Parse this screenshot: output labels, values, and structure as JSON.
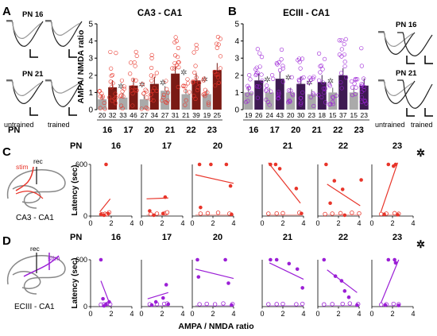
{
  "panel_letters": {
    "a": "A",
    "b": "B",
    "c": "C",
    "d": "D"
  },
  "colors": {
    "ca3": "#e8352a",
    "ec": "#9b1fd6",
    "untrained": "#aaaaaa",
    "trained_dark": "#1a1a1a",
    "gray_line": "#888888",
    "ca3_bar": "#7a1a14",
    "ec_bar": "#3e1a52"
  },
  "trace_labels": {
    "pn16": "PN 16",
    "pn21": "PN 21",
    "untrained": "untrained",
    "trained": "trained"
  },
  "chart_data": [
    {
      "type": "bar",
      "panel": "A",
      "title": "CA3 - CA1",
      "ylabel": "AMPA/ NMDA ratio",
      "xlabel": "PN",
      "ylim": [
        0,
        5
      ],
      "yticks": [
        "0",
        "1",
        "2",
        "3",
        "4",
        "5"
      ],
      "categories": [
        "16",
        "17",
        "20",
        "21",
        "22",
        "23"
      ],
      "series": [
        {
          "name": "untrained",
          "values": [
            0.6,
            0.7,
            0.6,
            1.1,
            0.9,
            0.9
          ]
        },
        {
          "name": "trained",
          "values": [
            1.3,
            1.4,
            1.5,
            2.1,
            1.7,
            2.3
          ]
        }
      ],
      "n_labels": [
        [
          "20",
          "32"
        ],
        [
          "33",
          "46"
        ],
        [
          "27",
          "34"
        ],
        [
          "27",
          "31"
        ],
        [
          "21",
          "39"
        ],
        [
          "19",
          "25"
        ]
      ],
      "significance": [
        true,
        true,
        true,
        true,
        true,
        false
      ],
      "sig_mark": "✲"
    },
    {
      "type": "bar",
      "panel": "B",
      "title": "ECIII - CA1",
      "ylabel": "",
      "xlabel": "",
      "ylim": [
        0,
        5
      ],
      "yticks": [
        "0",
        "1",
        "2",
        "3",
        "4",
        "5"
      ],
      "categories": [
        "16",
        "17",
        "20",
        "21",
        "22",
        "23"
      ],
      "series": [
        {
          "name": "untrained",
          "values": [
            1.0,
            1.0,
            1.0,
            0.9,
            1.0,
            1.0
          ]
        },
        {
          "name": "trained",
          "values": [
            1.7,
            1.8,
            1.5,
            1.6,
            2.0,
            1.4
          ]
        }
      ],
      "n_labels": [
        [
          "19",
          "26"
        ],
        [
          "24",
          "43"
        ],
        [
          "20",
          "30"
        ],
        [
          "23",
          "18"
        ],
        [
          "15",
          "37"
        ],
        [
          "15",
          "23"
        ]
      ],
      "significance": [
        true,
        true,
        true,
        true,
        false,
        false
      ],
      "sig_mark": "✲"
    },
    {
      "type": "scatter",
      "panel": "C",
      "region_label": "CA3 - CA1",
      "diagram_labels": {
        "stim": "stim",
        "rec": "rec"
      },
      "row_label": "PN",
      "ylabel": "Latency (sec)",
      "xlim": [
        0,
        4
      ],
      "ylim": [
        0,
        600
      ],
      "xticks": [
        "0",
        "2",
        "4"
      ],
      "yticks": [
        "0",
        "600"
      ],
      "asterisk": "✲",
      "subplots": [
        {
          "pn": "16",
          "filled": [
            [
              1.5,
              600
            ],
            [
              1.0,
              20
            ],
            [
              1.3,
              10
            ],
            [
              1.7,
              30
            ]
          ],
          "open": [
            [
              1.1,
              5
            ],
            [
              1.4,
              8
            ],
            [
              1.8,
              25
            ],
            [
              1.6,
              3
            ]
          ],
          "fit_filled": [
            [
              0.9,
              50
            ],
            [
              1.9,
              200
            ]
          ],
          "fit_open": [
            [
              0.9,
              12
            ],
            [
              1.9,
              12
            ]
          ]
        },
        {
          "pn": "17",
          "filled": [
            [
              0.8,
              60
            ],
            [
              2.3,
              220
            ],
            [
              2.1,
              30
            ],
            [
              1.2,
              10
            ]
          ],
          "open": [
            [
              0.9,
              5
            ],
            [
              1.5,
              10
            ],
            [
              2.3,
              15
            ],
            [
              2.5,
              25
            ]
          ],
          "fit_filled": [
            [
              0.5,
              200
            ],
            [
              2.6,
              210
            ]
          ],
          "fit_open": [
            [
              0.5,
              12
            ],
            [
              2.6,
              12
            ]
          ]
        },
        {
          "pn": "20",
          "filled": [
            [
              0.7,
              600
            ],
            [
              1.8,
              600
            ],
            [
              3.3,
              600
            ],
            [
              0.8,
              100
            ],
            [
              3.7,
              350
            ],
            [
              3.8,
              20
            ]
          ],
          "open": [
            [
              0.8,
              10
            ],
            [
              1.5,
              15
            ],
            [
              2.5,
              20
            ],
            [
              3.6,
              10
            ]
          ],
          "fit_filled": [
            [
              0.3,
              480
            ],
            [
              4.0,
              380
            ]
          ],
          "fit_open": [
            [
              0.3,
              12
            ],
            [
              4.0,
              12
            ]
          ]
        },
        {
          "pn": "21",
          "filled": [
            [
              0.8,
              600
            ],
            [
              1.3,
              600
            ],
            [
              3.3,
              320
            ],
            [
              3.8,
              30
            ],
            [
              1.7,
              550
            ]
          ],
          "open": [
            [
              0.6,
              10
            ],
            [
              1.4,
              12
            ],
            [
              2.0,
              15
            ],
            [
              3.6,
              20
            ]
          ],
          "fit_filled": [
            [
              0.6,
              620
            ],
            [
              3.7,
              150
            ]
          ],
          "fit_open": [
            [
              0.6,
              12
            ],
            [
              3.7,
              12
            ]
          ]
        },
        {
          "pn": "22",
          "filled": [
            [
              0.8,
              600
            ],
            [
              1.6,
              410
            ],
            [
              4.2,
              420
            ],
            [
              2.4,
              310
            ],
            [
              1.2,
              150
            ],
            [
              2.6,
              10
            ]
          ],
          "open": [
            [
              0.7,
              5
            ],
            [
              1.4,
              10
            ],
            [
              2.2,
              15
            ],
            [
              3.3,
              20
            ],
            [
              4.0,
              12
            ]
          ],
          "fit_filled": [
            [
              0.9,
              370
            ],
            [
              4.1,
              120
            ]
          ],
          "fit_open": [
            [
              0.7,
              14
            ],
            [
              4.1,
              14
            ]
          ]
        },
        {
          "pn": "23",
          "filled": [
            [
              1.6,
              600
            ],
            [
              2.3,
              600
            ],
            [
              2.1,
              580
            ],
            [
              1.2,
              20
            ],
            [
              2.5,
              15
            ]
          ],
          "open": [
            [
              0.9,
              5
            ],
            [
              1.4,
              10
            ],
            [
              2.2,
              15
            ],
            [
              2.6,
              8
            ]
          ],
          "fit_filled": [
            [
              0.8,
              20
            ],
            [
              2.5,
              620
            ]
          ],
          "fit_open": [
            [
              0.8,
              12
            ],
            [
              2.6,
              12
            ]
          ],
          "significant": true
        }
      ]
    },
    {
      "type": "scatter",
      "panel": "D",
      "region_label": "ECIII - CA1",
      "diagram_labels": {
        "stim": "stim",
        "rec": "rec"
      },
      "row_label": "PN",
      "ylabel": "Latency (sec)",
      "xlabel": "AMPA / NMDA ratio",
      "xlim": [
        0,
        4
      ],
      "ylim": [
        0,
        600
      ],
      "xticks": [
        "0",
        "2",
        "4"
      ],
      "yticks": [
        "0",
        "600"
      ],
      "asterisk": "✲",
      "subplots": [
        {
          "pn": "16",
          "filled": [
            [
              1.0,
              600
            ],
            [
              1.2,
              100
            ],
            [
              1.5,
              30
            ],
            [
              1.8,
              60
            ],
            [
              1.3,
              10
            ]
          ],
          "open": [
            [
              1.0,
              5
            ],
            [
              1.3,
              8
            ],
            [
              1.6,
              15
            ],
            [
              1.9,
              10
            ]
          ],
          "fit_filled": [
            [
              1.0,
              330
            ],
            [
              1.9,
              20
            ]
          ],
          "fit_open": [
            [
              1.0,
              12
            ],
            [
              1.9,
              12
            ]
          ]
        },
        {
          "pn": "17",
          "filled": [
            [
              2.4,
              280
            ],
            [
              2.1,
              110
            ],
            [
              1.4,
              60
            ],
            [
              1.0,
              20
            ],
            [
              2.6,
              30
            ]
          ],
          "open": [
            [
              0.8,
              10
            ],
            [
              1.5,
              12
            ],
            [
              2.2,
              15
            ],
            [
              2.5,
              20
            ]
          ],
          "fit_filled": [
            [
              0.6,
              100
            ],
            [
              2.6,
              180
            ]
          ],
          "fit_open": [
            [
              0.6,
              12
            ],
            [
              2.6,
              12
            ]
          ]
        },
        {
          "pn": "20",
          "filled": [
            [
              0.5,
              600
            ],
            [
              0.6,
              380
            ],
            [
              3.2,
              600
            ],
            [
              3.5,
              300
            ],
            [
              3.8,
              20
            ]
          ],
          "open": [
            [
              0.7,
              10
            ],
            [
              1.4,
              15
            ],
            [
              2.2,
              10
            ],
            [
              3.0,
              20
            ],
            [
              3.9,
              12
            ]
          ],
          "fit_filled": [
            [
              0.3,
              480
            ],
            [
              4.0,
              360
            ]
          ],
          "fit_open": [
            [
              0.3,
              12
            ],
            [
              4.0,
              12
            ]
          ]
        },
        {
          "pn": "21",
          "filled": [
            [
              0.8,
              600
            ],
            [
              1.4,
              600
            ],
            [
              2.6,
              550
            ],
            [
              3.4,
              480
            ],
            [
              3.9,
              240
            ]
          ],
          "open": [
            [
              0.6,
              10
            ],
            [
              1.4,
              12
            ],
            [
              2.0,
              15
            ],
            [
              3.3,
              10
            ],
            [
              3.9,
              15
            ]
          ],
          "fit_filled": [
            [
              0.7,
              560
            ],
            [
              4.0,
              350
            ]
          ],
          "fit_open": [
            [
              0.7,
              12
            ],
            [
              4.0,
              12
            ]
          ]
        },
        {
          "pn": "22",
          "filled": [
            [
              0.6,
              600
            ],
            [
              1.7,
              390
            ],
            [
              2.3,
              330
            ],
            [
              2.6,
              200
            ],
            [
              3.0,
              120
            ],
            [
              3.8,
              20
            ]
          ],
          "open": [
            [
              0.6,
              8
            ],
            [
              1.4,
              12
            ],
            [
              2.4,
              15
            ],
            [
              3.1,
              20
            ],
            [
              3.9,
              12
            ]
          ],
          "fit_filled": [
            [
              0.9,
              470
            ],
            [
              3.8,
              180
            ]
          ],
          "fit_open": [
            [
              0.6,
              14
            ],
            [
              3.9,
              14
            ]
          ]
        },
        {
          "pn": "23",
          "filled": [
            [
              1.6,
              600
            ],
            [
              2.2,
              600
            ],
            [
              2.3,
              560
            ],
            [
              1.3,
              20
            ],
            [
              2.6,
              15
            ]
          ],
          "open": [
            [
              0.9,
              5
            ],
            [
              1.4,
              10
            ],
            [
              2.1,
              15
            ],
            [
              2.6,
              10
            ]
          ],
          "fit_filled": [
            [
              0.8,
              20
            ],
            [
              2.6,
              600
            ]
          ],
          "fit_open": [
            [
              0.8,
              12
            ],
            [
              2.6,
              12
            ]
          ],
          "significant": true
        }
      ]
    }
  ]
}
